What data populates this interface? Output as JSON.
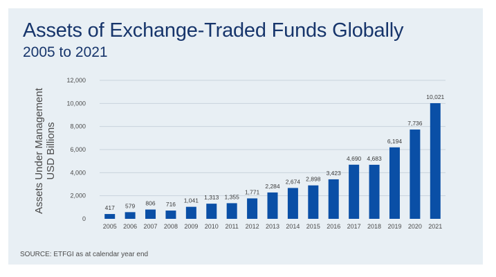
{
  "chart_data": {
    "type": "bar",
    "title": "Assets of Exchange-Traded Funds Globally",
    "subtitle": "2005 to 2021",
    "ylabel_line1": "Assets Under Management",
    "ylabel_line2": "USD Billions",
    "xlabel": "",
    "categories": [
      "2005",
      "2006",
      "2007",
      "2008",
      "2009",
      "2010",
      "2011",
      "2012",
      "2013",
      "2014",
      "2015",
      "2016",
      "2017",
      "2018",
      "2019",
      "2020",
      "2021"
    ],
    "values": [
      417,
      579,
      806,
      716,
      1041,
      1313,
      1355,
      1771,
      2284,
      2674,
      2898,
      3423,
      4690,
      4683,
      6194,
      7736,
      10021
    ],
    "value_labels": [
      "417",
      "579",
      "806",
      "716",
      "1,041",
      "1,313",
      "1,355",
      "1,771",
      "2,284",
      "2,674",
      "2,898",
      "3,423",
      "4,690",
      "4,683",
      "6,194",
      "7,736",
      "10,021"
    ],
    "ylim": [
      0,
      12000
    ],
    "yticks": [
      0,
      2000,
      4000,
      6000,
      8000,
      10000,
      12000
    ],
    "ytick_labels": [
      "0",
      "2,000",
      "4,000",
      "6,000",
      "8,000",
      "10,000",
      "12,000"
    ],
    "grid": true,
    "bar_color": "#0a4fa6",
    "grid_color": "#c9d3dc"
  },
  "source": "SOURCE: ETFGI as at calendar year end",
  "colors": {
    "background": "#e8eff4",
    "title": "#17356b"
  }
}
